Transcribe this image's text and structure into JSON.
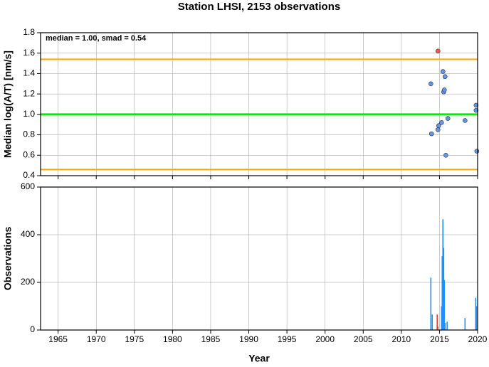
{
  "chart_data": [
    {
      "type": "scatter",
      "title": "Station LHSI, 2153 observations",
      "ylabel": "Median log(A/T) [nm/s]",
      "annotation": "median = 1.00, smad = 0.54",
      "xlim": [
        1962.7,
        2020
      ],
      "xticks": [
        1965,
        1970,
        1975,
        1980,
        1985,
        1990,
        1995,
        2000,
        2005,
        2010,
        2015,
        2020
      ],
      "ylim": [
        0.4,
        1.8
      ],
      "yticks": [
        0.4,
        0.6,
        0.8,
        {
          "value": 1,
          "label": "1.0"
        },
        1.2,
        1.4,
        1.6,
        1.8
      ],
      "grid": true,
      "reference_lines": [
        {
          "value": 1.54,
          "color": "#ffa500"
        },
        {
          "value": 1.0,
          "color": "#00ee00"
        },
        {
          "value": 0.46,
          "color": "#ffa500"
        }
      ],
      "series": [
        {
          "color": "#6495ed",
          "x": [
            2013.87,
            2013.96,
            2014.8,
            2014.9,
            2015.27,
            2015.45,
            2015.55,
            2015.64,
            2015.73,
            2015.83,
            2016.1,
            2018.35,
            2019.8,
            2019.8,
            2019.9
          ],
          "values": [
            1.3,
            0.81,
            0.85,
            0.89,
            0.92,
            1.42,
            1.22,
            1.24,
            1.37,
            0.6,
            0.96,
            0.94,
            1.09,
            1.04,
            0.64
          ]
        },
        {
          "color": "#f05a4a",
          "x": [
            2014.8
          ],
          "values": [
            1.62
          ]
        }
      ]
    },
    {
      "type": "bar",
      "xlabel": "Year",
      "ylabel": "Observations",
      "xlim": [
        1962.7,
        2020
      ],
      "xticks": [
        1965,
        1970,
        1975,
        1980,
        1985,
        1990,
        1995,
        2000,
        2005,
        2010,
        2015,
        2020
      ],
      "ylim": [
        0,
        600
      ],
      "yticks": [
        0,
        200,
        400,
        600
      ],
      "grid": true,
      "series": [
        {
          "color": "#1e90ff",
          "x": [
            2013.87,
            2014.05,
            2014.8,
            2015.27,
            2015.36,
            2015.45,
            2015.55,
            2015.64,
            2015.73,
            2016.0,
            2018.35,
            2019.75,
            2019.85
          ],
          "values": [
            220,
            65,
            15,
            100,
            310,
            465,
            345,
            210,
            30,
            35,
            50,
            135,
            100
          ]
        },
        {
          "color": "#f03c28",
          "x": [
            2014.7
          ],
          "values": [
            65
          ]
        }
      ]
    }
  ]
}
